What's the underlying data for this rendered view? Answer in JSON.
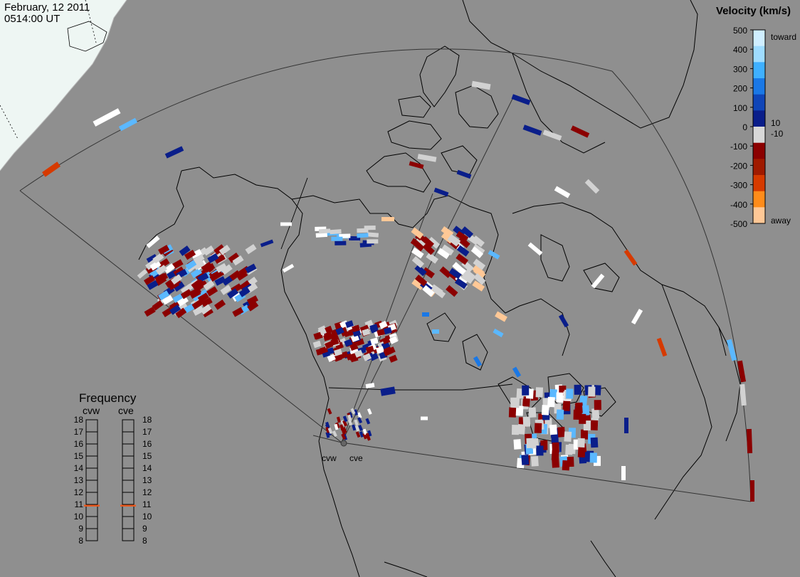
{
  "header": {
    "date": "February, 12 2011",
    "time": "0514:00 UT"
  },
  "velocity_scale": {
    "title": "Velocity (km/s)",
    "ticks": [
      "500",
      "400",
      "300",
      "200",
      "100",
      "0",
      "-100",
      "-200",
      "-300",
      "-400",
      "-500"
    ],
    "inner_ticks": [
      "10",
      "-10"
    ],
    "toward_label": "toward",
    "away_label": "away",
    "colors": [
      "#cfeeff",
      "#9fdcff",
      "#3fb0ff",
      "#1a78e6",
      "#0f45b8",
      "#0a1e8a",
      "#d8d8d8",
      "#8b0000",
      "#a01a00",
      "#d63a00",
      "#ff8c1a",
      "#ffc896"
    ]
  },
  "frequency_panel": {
    "title": "Frequency",
    "radars": [
      "cvw",
      "cve"
    ],
    "levels": [
      "18",
      "17",
      "16",
      "15",
      "14",
      "13",
      "12",
      "11",
      "10",
      "9",
      "8"
    ],
    "cvw_mhz": 10.9,
    "cve_mhz": 10.9,
    "marker_color": "#e85a20"
  },
  "map": {
    "radar_labels": [
      "cvw",
      "cve"
    ],
    "land_color": "#8f8f8f",
    "daylight_color": "#eef6f3",
    "coast_color": "#000000"
  }
}
